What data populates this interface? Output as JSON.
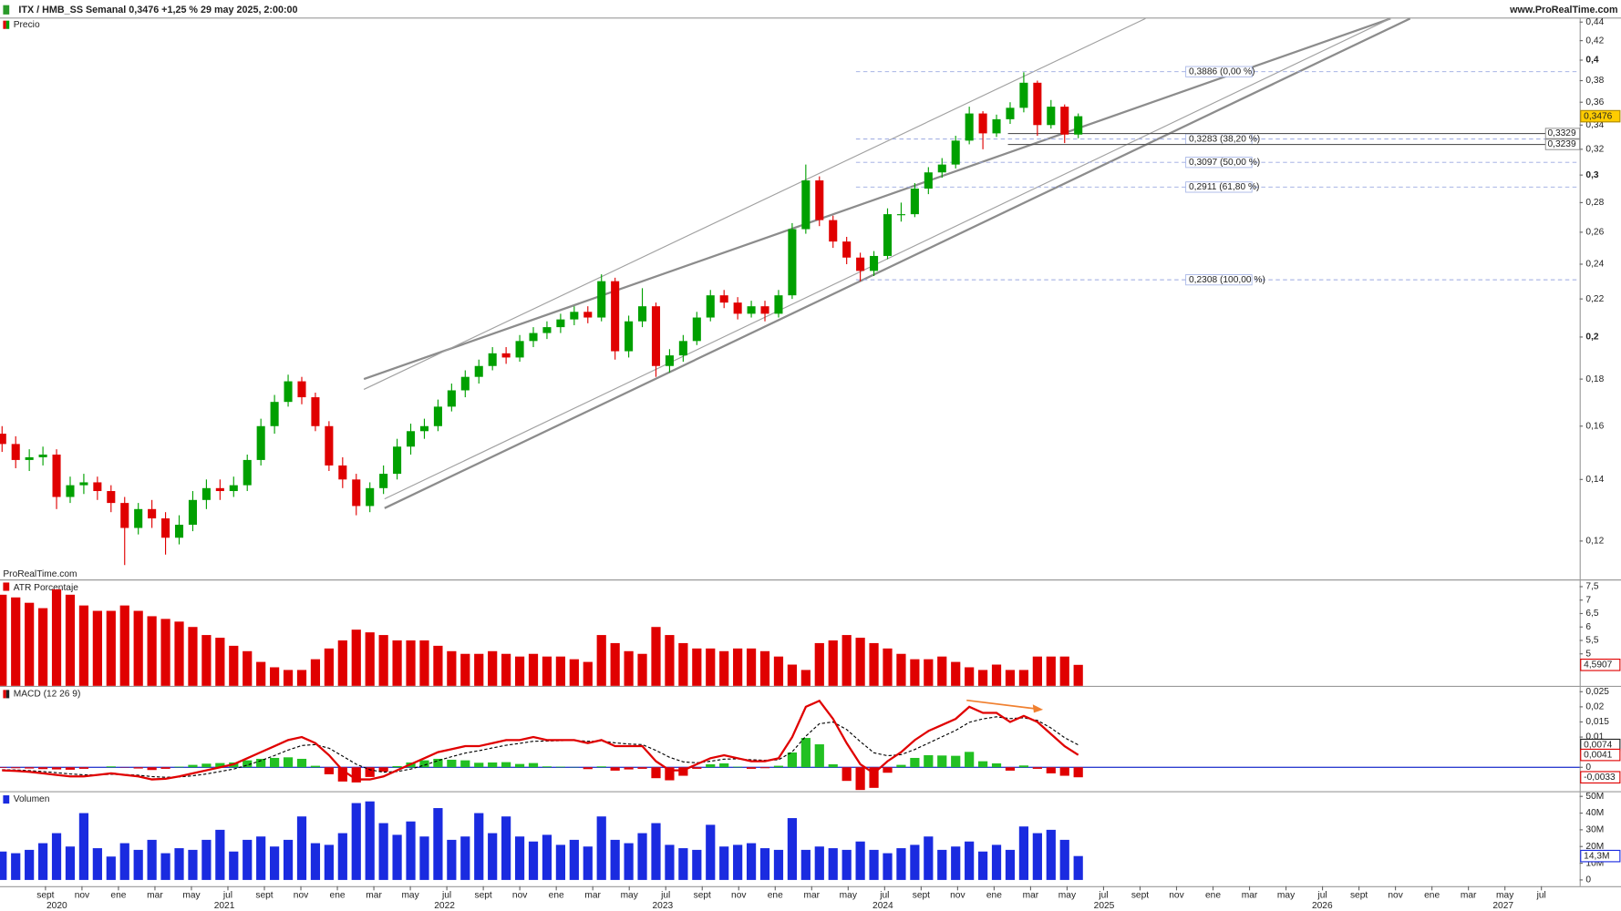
{
  "header": {
    "title": "ITX / HMB_SS Semanal 0,3476 +1,25 % 29 may 2025, 2:00:00",
    "source": "www.ProRealTime.com",
    "watermark": "ProRealTime.com"
  },
  "xaxis": {
    "months": [
      "sept",
      "nov",
      "ene",
      "mar",
      "may",
      "jul",
      "sept",
      "nov",
      "ene",
      "mar",
      "may",
      "jul",
      "sept",
      "nov",
      "ene",
      "mar",
      "may",
      "jul",
      "sept",
      "nov",
      "ene",
      "mar",
      "may",
      "jul",
      "sept",
      "nov",
      "ene",
      "mar",
      "may",
      "jul",
      "sept",
      "nov",
      "ene",
      "mar",
      "may",
      "jul",
      "sept",
      "nov",
      "ene",
      "mar",
      "may",
      "jul"
    ],
    "years": [
      "2020",
      "2021",
      "2022",
      "2023",
      "2024",
      "2025",
      "2026",
      "2027"
    ]
  },
  "chart_data": [
    {
      "type": "candlestick",
      "title": "Precio",
      "log": true,
      "up_color": "#00a000",
      "down_color": "#e00000",
      "open": [
        0.157,
        0.153,
        0.147,
        0.148,
        0.149,
        0.134,
        0.138,
        0.139,
        0.136,
        0.132,
        0.124,
        0.13,
        0.127,
        0.121,
        0.125,
        0.133,
        0.137,
        0.136,
        0.138,
        0.147,
        0.16,
        0.17,
        0.179,
        0.172,
        0.16,
        0.145,
        0.14,
        0.131,
        0.137,
        0.142,
        0.152,
        0.158,
        0.16,
        0.168,
        0.175,
        0.181,
        0.186,
        0.192,
        0.19,
        0.198,
        0.202,
        0.205,
        0.209,
        0.213,
        0.21,
        0.23,
        0.193,
        0.208,
        0.216,
        0.186,
        0.191,
        0.198,
        0.21,
        0.222,
        0.218,
        0.212,
        0.216,
        0.212,
        0.222,
        0.262,
        0.296,
        0.268,
        0.254,
        0.244,
        0.236,
        0.245,
        0.272,
        0.272,
        0.29,
        0.302,
        0.308,
        0.327,
        0.35,
        0.333,
        0.345,
        0.355,
        0.378,
        0.34,
        0.356,
        0.332
      ],
      "high": [
        0.16,
        0.156,
        0.151,
        0.152,
        0.151,
        0.141,
        0.142,
        0.141,
        0.138,
        0.134,
        0.132,
        0.133,
        0.129,
        0.128,
        0.136,
        0.14,
        0.14,
        0.141,
        0.149,
        0.163,
        0.173,
        0.182,
        0.181,
        0.174,
        0.162,
        0.148,
        0.142,
        0.139,
        0.145,
        0.155,
        0.161,
        0.163,
        0.171,
        0.178,
        0.184,
        0.189,
        0.195,
        0.195,
        0.201,
        0.205,
        0.208,
        0.212,
        0.216,
        0.216,
        0.234,
        0.232,
        0.211,
        0.226,
        0.218,
        0.194,
        0.201,
        0.213,
        0.225,
        0.225,
        0.221,
        0.219,
        0.219,
        0.225,
        0.266,
        0.308,
        0.299,
        0.271,
        0.257,
        0.247,
        0.248,
        0.276,
        0.28,
        0.294,
        0.306,
        0.313,
        0.331,
        0.356,
        0.352,
        0.349,
        0.36,
        0.388,
        0.38,
        0.362,
        0.358,
        0.35
      ],
      "low": [
        0.15,
        0.144,
        0.143,
        0.145,
        0.13,
        0.132,
        0.135,
        0.133,
        0.129,
        0.113,
        0.122,
        0.124,
        0.116,
        0.119,
        0.123,
        0.13,
        0.133,
        0.134,
        0.136,
        0.145,
        0.157,
        0.168,
        0.169,
        0.158,
        0.143,
        0.137,
        0.128,
        0.129,
        0.135,
        0.14,
        0.149,
        0.155,
        0.158,
        0.166,
        0.172,
        0.178,
        0.184,
        0.187,
        0.188,
        0.195,
        0.199,
        0.202,
        0.206,
        0.207,
        0.208,
        0.189,
        0.19,
        0.205,
        0.181,
        0.183,
        0.188,
        0.196,
        0.208,
        0.215,
        0.209,
        0.21,
        0.208,
        0.21,
        0.22,
        0.259,
        0.264,
        0.25,
        0.24,
        0.23,
        0.233,
        0.243,
        0.267,
        0.27,
        0.286,
        0.298,
        0.305,
        0.324,
        0.32,
        0.33,
        0.341,
        0.351,
        0.331,
        0.337,
        0.325,
        0.329
      ],
      "close": [
        0.153,
        0.147,
        0.148,
        0.149,
        0.134,
        0.138,
        0.139,
        0.136,
        0.132,
        0.124,
        0.13,
        0.127,
        0.121,
        0.125,
        0.133,
        0.137,
        0.136,
        0.138,
        0.147,
        0.16,
        0.17,
        0.179,
        0.172,
        0.16,
        0.145,
        0.14,
        0.131,
        0.137,
        0.142,
        0.152,
        0.158,
        0.16,
        0.168,
        0.175,
        0.181,
        0.186,
        0.192,
        0.19,
        0.198,
        0.202,
        0.205,
        0.209,
        0.213,
        0.21,
        0.23,
        0.193,
        0.208,
        0.216,
        0.186,
        0.191,
        0.198,
        0.21,
        0.222,
        0.218,
        0.212,
        0.216,
        0.212,
        0.222,
        0.262,
        0.296,
        0.268,
        0.254,
        0.244,
        0.236,
        0.245,
        0.272,
        0.272,
        0.29,
        0.302,
        0.308,
        0.327,
        0.35,
        0.333,
        0.345,
        0.355,
        0.378,
        0.34,
        0.356,
        0.332,
        0.3476
      ],
      "last_label": "0,3476",
      "ylim": [
        0.109,
        0.445
      ],
      "yticks": [
        {
          "value": 0.12,
          "label": "0,12"
        },
        {
          "value": 0.14,
          "label": "0,14"
        },
        {
          "value": 0.16,
          "label": "0,16"
        },
        {
          "value": 0.18,
          "label": "0,18"
        },
        {
          "value": 0.2,
          "label": "0,2"
        },
        {
          "value": 0.22,
          "label": "0,22"
        },
        {
          "value": 0.24,
          "label": "0,24"
        },
        {
          "value": 0.26,
          "label": "0,26"
        },
        {
          "value": 0.28,
          "label": "0,28"
        },
        {
          "value": 0.3,
          "label": "0,3"
        },
        {
          "value": 0.32,
          "label": "0,32"
        },
        {
          "value": 0.34,
          "label": "0,34"
        },
        {
          "value": 0.36,
          "label": "0,36"
        },
        {
          "value": 0.38,
          "label": "0,38"
        },
        {
          "value": 0.4,
          "label": "0,4"
        },
        {
          "value": 0.42,
          "label": "0,42"
        },
        {
          "value": 0.44,
          "label": "0,44"
        }
      ],
      "fib_levels": [
        {
          "value": 0.3886,
          "label": "0,3886 (0,00 %)"
        },
        {
          "value": 0.3283,
          "label": "0,3283 (38,20 %)"
        },
        {
          "value": 0.3097,
          "label": "0,3097 (50,00 %)"
        },
        {
          "value": 0.2911,
          "label": "0,2911 (61,80 %)"
        },
        {
          "value": 0.2308,
          "label": "0,2308 (100,00 %)"
        }
      ],
      "hlines": [
        {
          "value": 0.3329,
          "label": "0,3329"
        },
        {
          "value": 0.3239,
          "label": "0,3239"
        }
      ]
    },
    {
      "type": "bar",
      "title": "ATR Porcentaje",
      "color": "#e00000",
      "values": [
        7.2,
        7.1,
        6.9,
        6.7,
        7.4,
        7.2,
        6.8,
        6.6,
        6.6,
        6.8,
        6.6,
        6.4,
        6.3,
        6.2,
        6.0,
        5.7,
        5.6,
        5.3,
        5.1,
        4.7,
        4.5,
        4.4,
        4.4,
        4.8,
        5.2,
        5.5,
        5.9,
        5.8,
        5.7,
        5.5,
        5.5,
        5.5,
        5.3,
        5.1,
        5.0,
        5.0,
        5.1,
        5.0,
        4.9,
        5.0,
        4.9,
        4.9,
        4.8,
        4.7,
        5.7,
        5.4,
        5.1,
        5.0,
        6.0,
        5.7,
        5.4,
        5.2,
        5.2,
        5.1,
        5.2,
        5.2,
        5.1,
        4.9,
        4.6,
        4.4,
        5.4,
        5.5,
        5.7,
        5.6,
        5.4,
        5.2,
        5.0,
        4.8,
        4.8,
        4.9,
        4.7,
        4.5,
        4.4,
        4.6,
        4.4,
        4.4,
        4.9,
        4.9,
        4.9,
        4.5907
      ],
      "last_label": "4,5907",
      "ylim": [
        3.81,
        7.73
      ],
      "yticks": [
        {
          "value": 7.5,
          "label": "7,5"
        },
        7,
        {
          "value": 6.5,
          "label": "6,5"
        },
        6,
        {
          "value": 5.5,
          "label": "5,5"
        },
        5
      ]
    },
    {
      "type": "macd",
      "title": "MACD (12 26 9)",
      "macd_color": "#e00000",
      "signal_color": "#000000",
      "up_color": "#22c022",
      "down_color": "#e00000",
      "macd": [
        -0.001,
        -0.0012,
        -0.0015,
        -0.002,
        -0.0025,
        -0.003,
        -0.003,
        -0.0025,
        -0.002,
        -0.0025,
        -0.003,
        -0.004,
        -0.0038,
        -0.003,
        -0.002,
        -0.001,
        0.0,
        0.001,
        0.003,
        0.005,
        0.007,
        0.009,
        0.01,
        0.008,
        0.004,
        -0.001,
        -0.004,
        -0.004,
        -0.003,
        -0.001,
        0.001,
        0.003,
        0.005,
        0.006,
        0.007,
        0.007,
        0.008,
        0.009,
        0.009,
        0.01,
        0.009,
        0.009,
        0.009,
        0.008,
        0.009,
        0.007,
        0.007,
        0.007,
        0.002,
        -0.001,
        -0.001,
        0.001,
        0.003,
        0.004,
        0.003,
        0.002,
        0.002,
        0.003,
        0.01,
        0.02,
        0.022,
        0.016,
        0.008,
        0.001,
        -0.002,
        0.002,
        0.005,
        0.009,
        0.012,
        0.014,
        0.016,
        0.02,
        0.018,
        0.018,
        0.015,
        0.017,
        0.015,
        0.011,
        0.007,
        0.0041
      ],
      "signal": [
        -0.0008,
        -0.0009,
        -0.0011,
        -0.0014,
        -0.0018,
        -0.0022,
        -0.0025,
        -0.0025,
        -0.0023,
        -0.0024,
        -0.0026,
        -0.0031,
        -0.0033,
        -0.0032,
        -0.0028,
        -0.0022,
        -0.0014,
        -0.0006,
        0.0007,
        0.0022,
        0.0039,
        0.0057,
        0.0072,
        0.0075,
        0.0063,
        0.0037,
        0.001,
        -0.0008,
        -0.0016,
        -0.0014,
        -0.0006,
        0.0007,
        0.0022,
        0.0035,
        0.0047,
        0.0055,
        0.0064,
        0.0073,
        0.0079,
        0.0086,
        0.0087,
        0.0088,
        0.0089,
        0.0086,
        0.0087,
        0.0081,
        0.0077,
        0.0075,
        0.0056,
        0.0033,
        0.0018,
        0.0015,
        0.002,
        0.0027,
        0.0028,
        0.0025,
        0.0023,
        0.0025,
        0.0051,
        0.0103,
        0.0144,
        0.015,
        0.0125,
        0.0085,
        0.0048,
        0.0038,
        0.0042,
        0.0059,
        0.008,
        0.0101,
        0.0122,
        0.0149,
        0.016,
        0.0167,
        0.0161,
        0.0164,
        0.0155,
        0.013,
        0.0098,
        0.0074
      ],
      "histogram": [
        -0.0002,
        -0.0003,
        -0.0004,
        -0.0006,
        -0.0007,
        -0.0008,
        -0.0005,
        0,
        0.0003,
        -0.0001,
        -0.0004,
        -0.0009,
        -0.0005,
        0.0002,
        0.0008,
        0.0012,
        0.0014,
        0.0016,
        0.0023,
        0.0028,
        0.0031,
        0.0033,
        0.0028,
        0.0005,
        -0.0023,
        -0.0047,
        -0.005,
        -0.0032,
        -0.0014,
        0.0004,
        0.0016,
        0.0023,
        0.0028,
        0.0025,
        0.0023,
        0.0015,
        0.0016,
        0.0017,
        0.0011,
        0.0014,
        0.0003,
        0.0002,
        0.0001,
        -0.0006,
        0.0003,
        -0.0011,
        -0.0007,
        -0.0005,
        -0.0036,
        -0.0043,
        -0.0028,
        -0.0005,
        0.001,
        0.0013,
        0.0002,
        -0.0005,
        -0.0003,
        0.0005,
        0.0049,
        0.0097,
        0.0076,
        0.001,
        -0.0045,
        -0.0075,
        -0.0068,
        -0.0018,
        0.0008,
        0.0031,
        0.004,
        0.0039,
        0.0038,
        0.0051,
        0.002,
        0.0013,
        -0.0011,
        0.0006,
        -0.0005,
        -0.002,
        -0.0028,
        -0.0033
      ],
      "macd_last_label": "0,0041",
      "signal_last_label": "0,0074",
      "histogram_last_label": "-0,0033",
      "ylim": [
        -0.0079,
        0.0266
      ],
      "yticks": [
        {
          "value": 0.025,
          "label": "0,025"
        },
        {
          "value": 0.02,
          "label": "0,02"
        },
        {
          "value": 0.015,
          "label": "0,015"
        },
        {
          "value": 0.01,
          "label": "0,01"
        },
        0
      ]
    },
    {
      "type": "bar",
      "title": "Volumen",
      "color": "#1a2be0",
      "values": [
        17,
        16,
        18,
        22,
        28,
        20,
        40,
        19,
        14,
        22,
        18,
        24,
        16,
        19,
        18,
        24,
        30,
        17,
        24,
        26,
        20,
        24,
        38,
        22,
        21,
        28,
        46,
        47,
        34,
        27,
        35,
        26,
        43,
        24,
        26,
        40,
        28,
        38,
        26,
        23,
        27,
        21,
        24,
        20,
        38,
        24,
        22,
        28,
        34,
        21,
        19,
        18,
        33,
        20,
        21,
        22,
        19,
        18,
        37,
        18,
        20,
        19,
        18,
        23,
        18,
        16,
        19,
        21,
        26,
        18,
        20,
        23,
        17,
        21,
        18,
        32,
        28,
        30,
        24,
        14.3
      ],
      "last_label": "14,3M",
      "ylim": [
        -3.75,
        52.5
      ],
      "yticks": [
        {
          "value": 50,
          "label": "50M"
        },
        {
          "value": 40,
          "label": "40M"
        },
        {
          "value": 30,
          "label": "30M"
        },
        {
          "value": 20,
          "label": "20M"
        },
        {
          "value": 10,
          "label": "10M"
        },
        0
      ]
    }
  ]
}
